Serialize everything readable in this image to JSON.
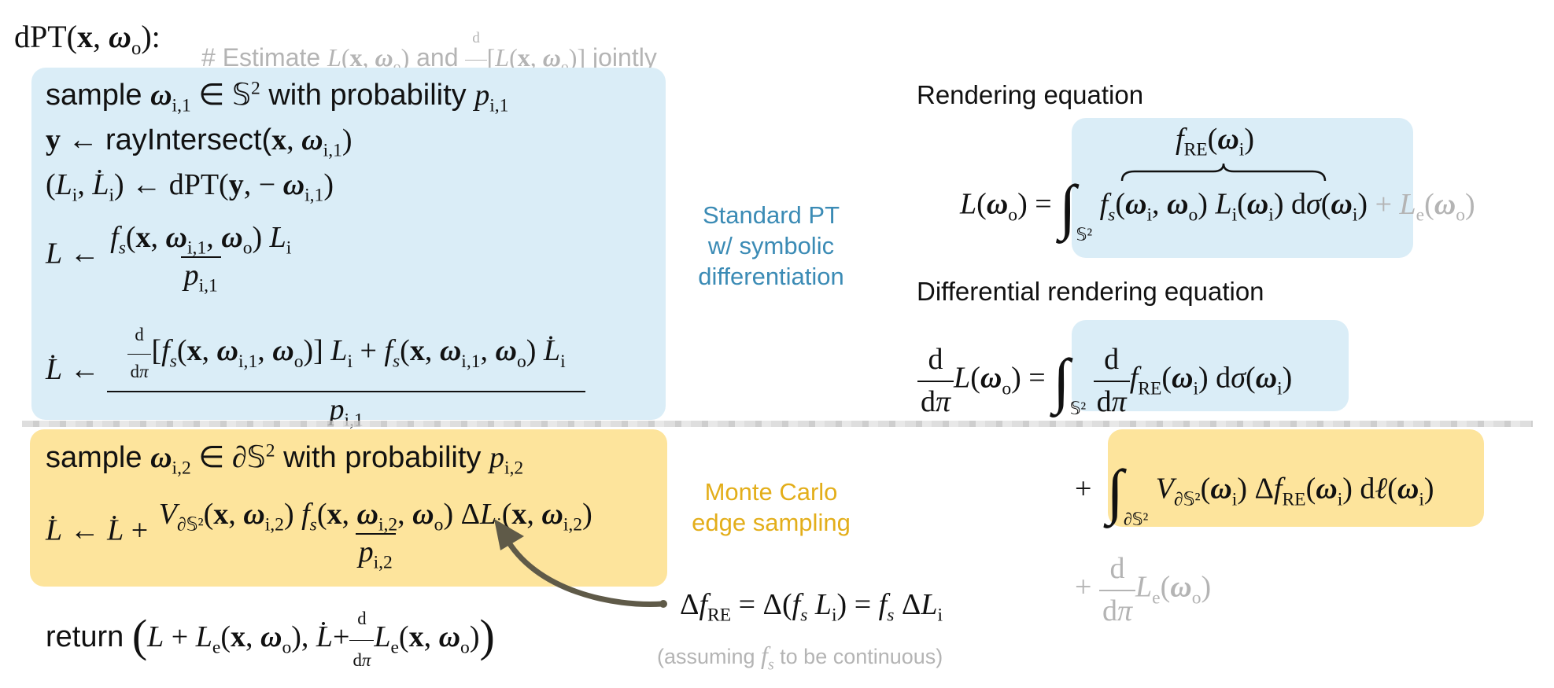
{
  "header": {
    "func": "dPT(",
    "x": "x",
    "comma": ", ",
    "omega": "ω",
    "o": "o",
    "close": "):",
    "comment_prefix": "# Estimate ",
    "comment_L": "L",
    "comment_and": " and ",
    "comment_jointly": " jointly"
  },
  "algo": {
    "sample1_pre": "sample ",
    "sample1_dom": "∈ 𝕊",
    "sample1_post": " with probability ",
    "ray_pre": "rayIntersect(",
    "dpt_call": "dPT(",
    "sample2_pre": "sample ",
    "sample2_dom": "∈ ∂𝕊",
    "sample2_post": " with probability ",
    "return_word": "return "
  },
  "labels": {
    "standard_pt": [
      "Standard PT",
      "w/ symbolic",
      "differentiation"
    ],
    "monte_carlo": [
      "Monte Carlo",
      "edge sampling"
    ],
    "rendering_equation": "Rendering equation",
    "differential_rendering_equation": "Differential rendering equation"
  },
  "equations": {
    "f_re_label": "f",
    "re_sub": "RE",
    "delta_f_text": "Δf",
    "assumption_pre": "(assuming ",
    "assumption_post": " to be continuous)"
  },
  "colors": {
    "blue_box": "#daedf7",
    "yellow_box": "#fde49c",
    "blue_text": "#3b8bb5",
    "yellow_text": "#e3ae1a",
    "gray_text": "#b4b4b4",
    "arrow": "#5f5a48"
  }
}
